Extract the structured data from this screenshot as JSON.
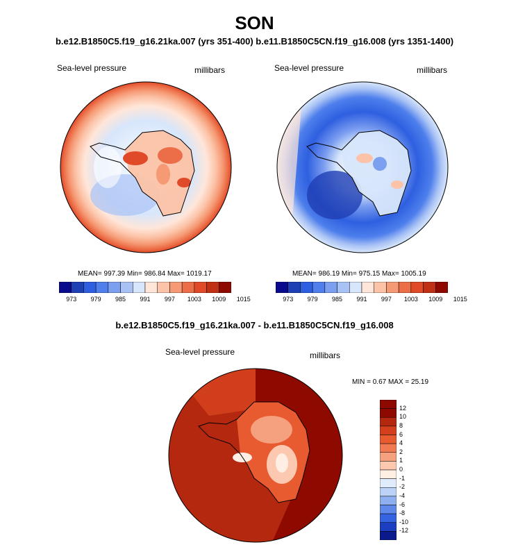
{
  "header": {
    "season": "SON",
    "comparison": "b.e12.B1850C5.f19_g16.21ka.007 (yrs 351-400) b.e11.B1850C5CN.f19_g16.008 (yrs 1351-1400)"
  },
  "colors": {
    "land_outline": "#000000",
    "scale": [
      "#0a0a8c",
      "#1f3fb4",
      "#2e5fe0",
      "#4e7fec",
      "#7d9ff0",
      "#a9c2f5",
      "#d7e6fb",
      "#ffe6d9",
      "#fcc3a8",
      "#f59a74",
      "#ec6e48",
      "#e04a28",
      "#c03014",
      "#8e0a00"
    ]
  },
  "panels": [
    {
      "id": "p1",
      "field": "Sea-level pressure",
      "units": "millibars",
      "stats": "MEAN= 997.39  Min= 986.84  Max= 1019.17",
      "ticks": [
        "973",
        "979",
        "985",
        "991",
        "997",
        "1003",
        "1009",
        "1015"
      ]
    },
    {
      "id": "p2",
      "field": "Sea-level pressure",
      "units": "millibars",
      "stats": "MEAN= 986.19  Min= 975.15  Max= 1005.19",
      "ticks": [
        "973",
        "979",
        "985",
        "991",
        "997",
        "1003",
        "1009",
        "1015"
      ]
    }
  ],
  "difference": {
    "title": "b.e12.B1850C5.f19_g16.21ka.007 - b.e11.B1850C5CN.f19_g16.008",
    "field": "Sea-level pressure",
    "units": "millibars",
    "stats": "MIN =   0.67 MAX =  25.19",
    "ticks": [
      "12",
      "10",
      "8",
      "6",
      "4",
      "2",
      "1",
      "0",
      "-1",
      "-2",
      "-4",
      "-6",
      "-8",
      "-10",
      "-12"
    ],
    "colors": [
      "#8e0a00",
      "#b42810",
      "#d4401e",
      "#e85a30",
      "#f07a52",
      "#f5a07e",
      "#fcc9b0",
      "#ffeee4",
      "#e0ecfb",
      "#bcd2f6",
      "#8fb0f0",
      "#5f88ea",
      "#3563e2",
      "#1b3fc0",
      "#0a1a8c"
    ]
  }
}
